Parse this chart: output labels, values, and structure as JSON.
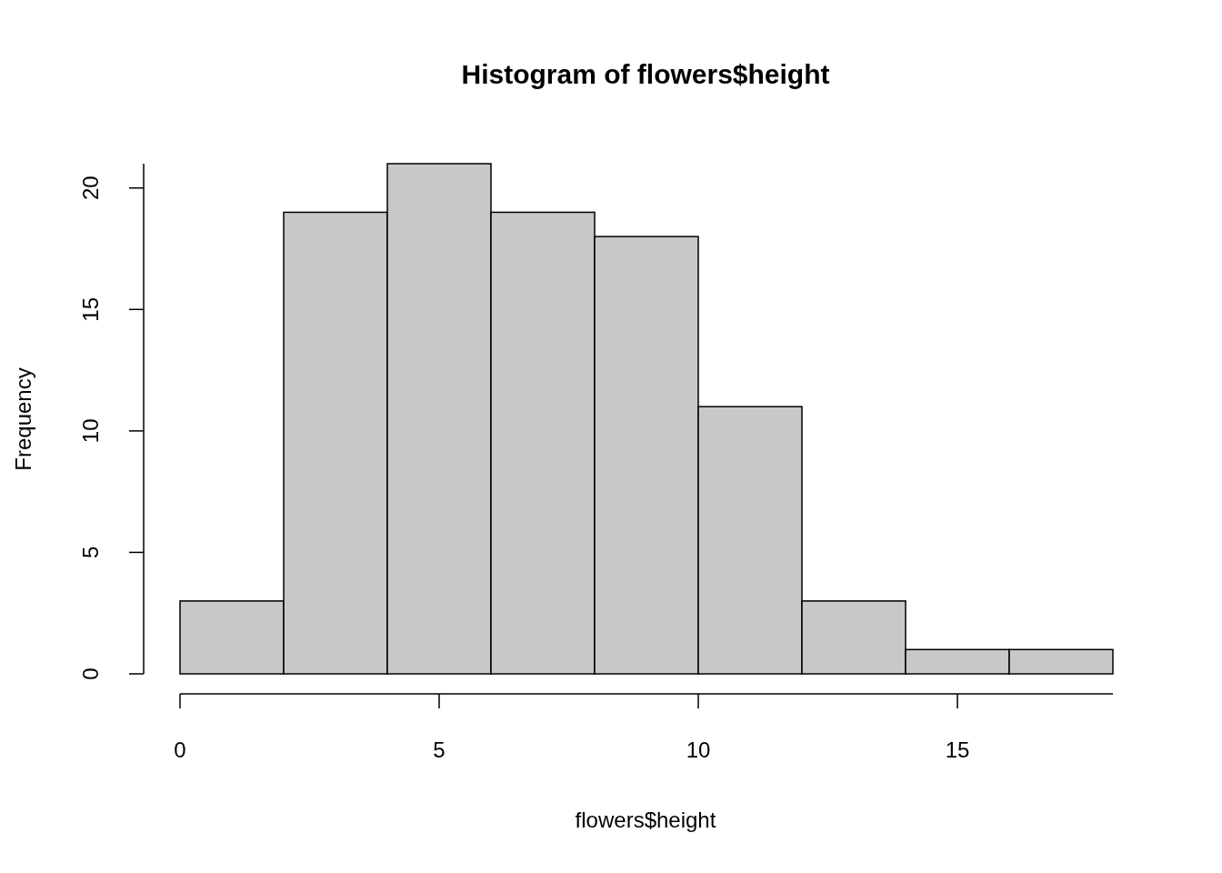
{
  "chart_data": {
    "type": "histogram",
    "title": "Histogram of flowers$height",
    "xlabel": "flowers$height",
    "ylabel": "Frequency",
    "bins": [
      0,
      2,
      4,
      6,
      8,
      10,
      12,
      14,
      16,
      18
    ],
    "values": [
      3,
      19,
      21,
      19,
      18,
      11,
      3,
      1,
      1
    ],
    "color": "#c8c8c8",
    "xlim": [
      0,
      18
    ],
    "xticks": [
      0,
      5,
      10,
      15
    ],
    "ylim": [
      0,
      21
    ],
    "yticks": [
      0,
      5,
      10,
      15,
      20
    ],
    "grid": false
  }
}
